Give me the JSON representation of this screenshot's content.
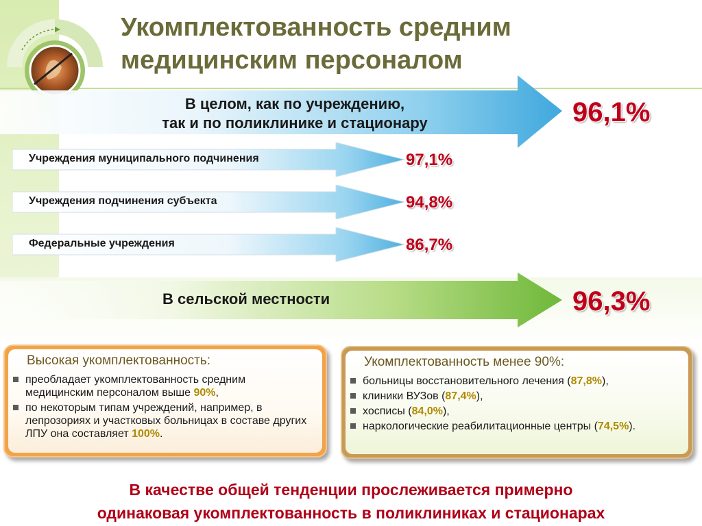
{
  "title": {
    "line1": "Укомплектованность средним",
    "line2": "медицинским персоналом"
  },
  "main_arrow": {
    "line1": "В целом, как по учреждению,",
    "line2": "так и по поликлинике и стационару",
    "value": "96,1%"
  },
  "sub_arrows": [
    {
      "label": "Учреждения муниципального подчинения",
      "value": "97,1%"
    },
    {
      "label": "Учреждения подчинения субъекта",
      "value": "94,8%"
    },
    {
      "label": "Федеральные учреждения",
      "value": "86,7%"
    }
  ],
  "rural_arrow": {
    "label": "В сельской местности",
    "value": "96,3%"
  },
  "left_box": {
    "title": "Высокая укомплектованность:",
    "items": [
      {
        "before": "преобладает укомплектованность средним медицинским персоналом выше ",
        "value": "90%",
        "after": ","
      },
      {
        "before": "по некоторым типам учреждений, например, в лепрозориях и участковых больницах в составе других ЛПУ она составляет ",
        "value": "100%",
        "after": "."
      }
    ]
  },
  "right_box": {
    "title": "Укомплектованность менее 90%:",
    "items": [
      {
        "before": "больницы восстановительного лечения (",
        "value": "87,8%",
        "after": "),"
      },
      {
        "before": "клиники ВУЗов (",
        "value": "87,4%",
        "after": "),"
      },
      {
        "before": "хосписы (",
        "value": "84,0%",
        "after": "),"
      },
      {
        "before": "наркологические реабилитационные центры (",
        "value": "74,5%",
        "after": ")."
      }
    ]
  },
  "footer": {
    "line1": "В качестве общей тенденции прослеживается примерно",
    "line2": "одинаковая укомплектованность в поликлиниках и стационарах"
  },
  "colors": {
    "title": "#6b6b3a",
    "percent": "#c0001a",
    "blue_arrow": "#5ab8e0",
    "green_arrow": "#8cc84b",
    "highlight": "#b08a00",
    "box_border": "#f0a040",
    "footer": "#b00018"
  }
}
